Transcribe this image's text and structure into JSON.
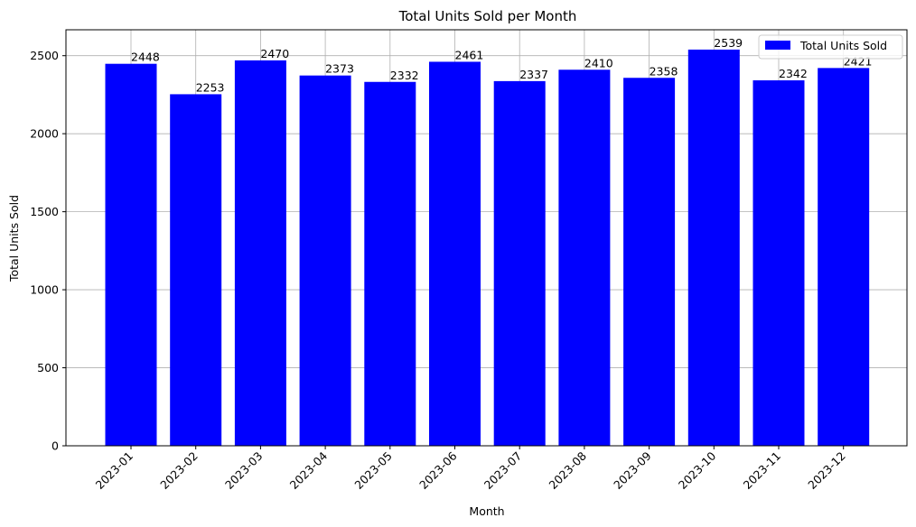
{
  "chart_data": {
    "type": "bar",
    "title": "Total Units Sold per Month",
    "xlabel": "Month",
    "ylabel": "Total Units Sold",
    "categories": [
      "2023-01",
      "2023-02",
      "2023-03",
      "2023-04",
      "2023-05",
      "2023-06",
      "2023-07",
      "2023-08",
      "2023-09",
      "2023-10",
      "2023-11",
      "2023-12"
    ],
    "series": [
      {
        "name": "Total Units Sold",
        "color": "#0000ff",
        "values": [
          2448,
          2253,
          2470,
          2373,
          2332,
          2461,
          2337,
          2410,
          2358,
          2539,
          2342,
          2421
        ]
      }
    ],
    "yticks": [
      0,
      500,
      1000,
      1500,
      2000,
      2500
    ],
    "ylim": [
      0,
      2666
    ],
    "grid": true,
    "legend_position": "top-right",
    "x_tick_rotation": 45
  }
}
